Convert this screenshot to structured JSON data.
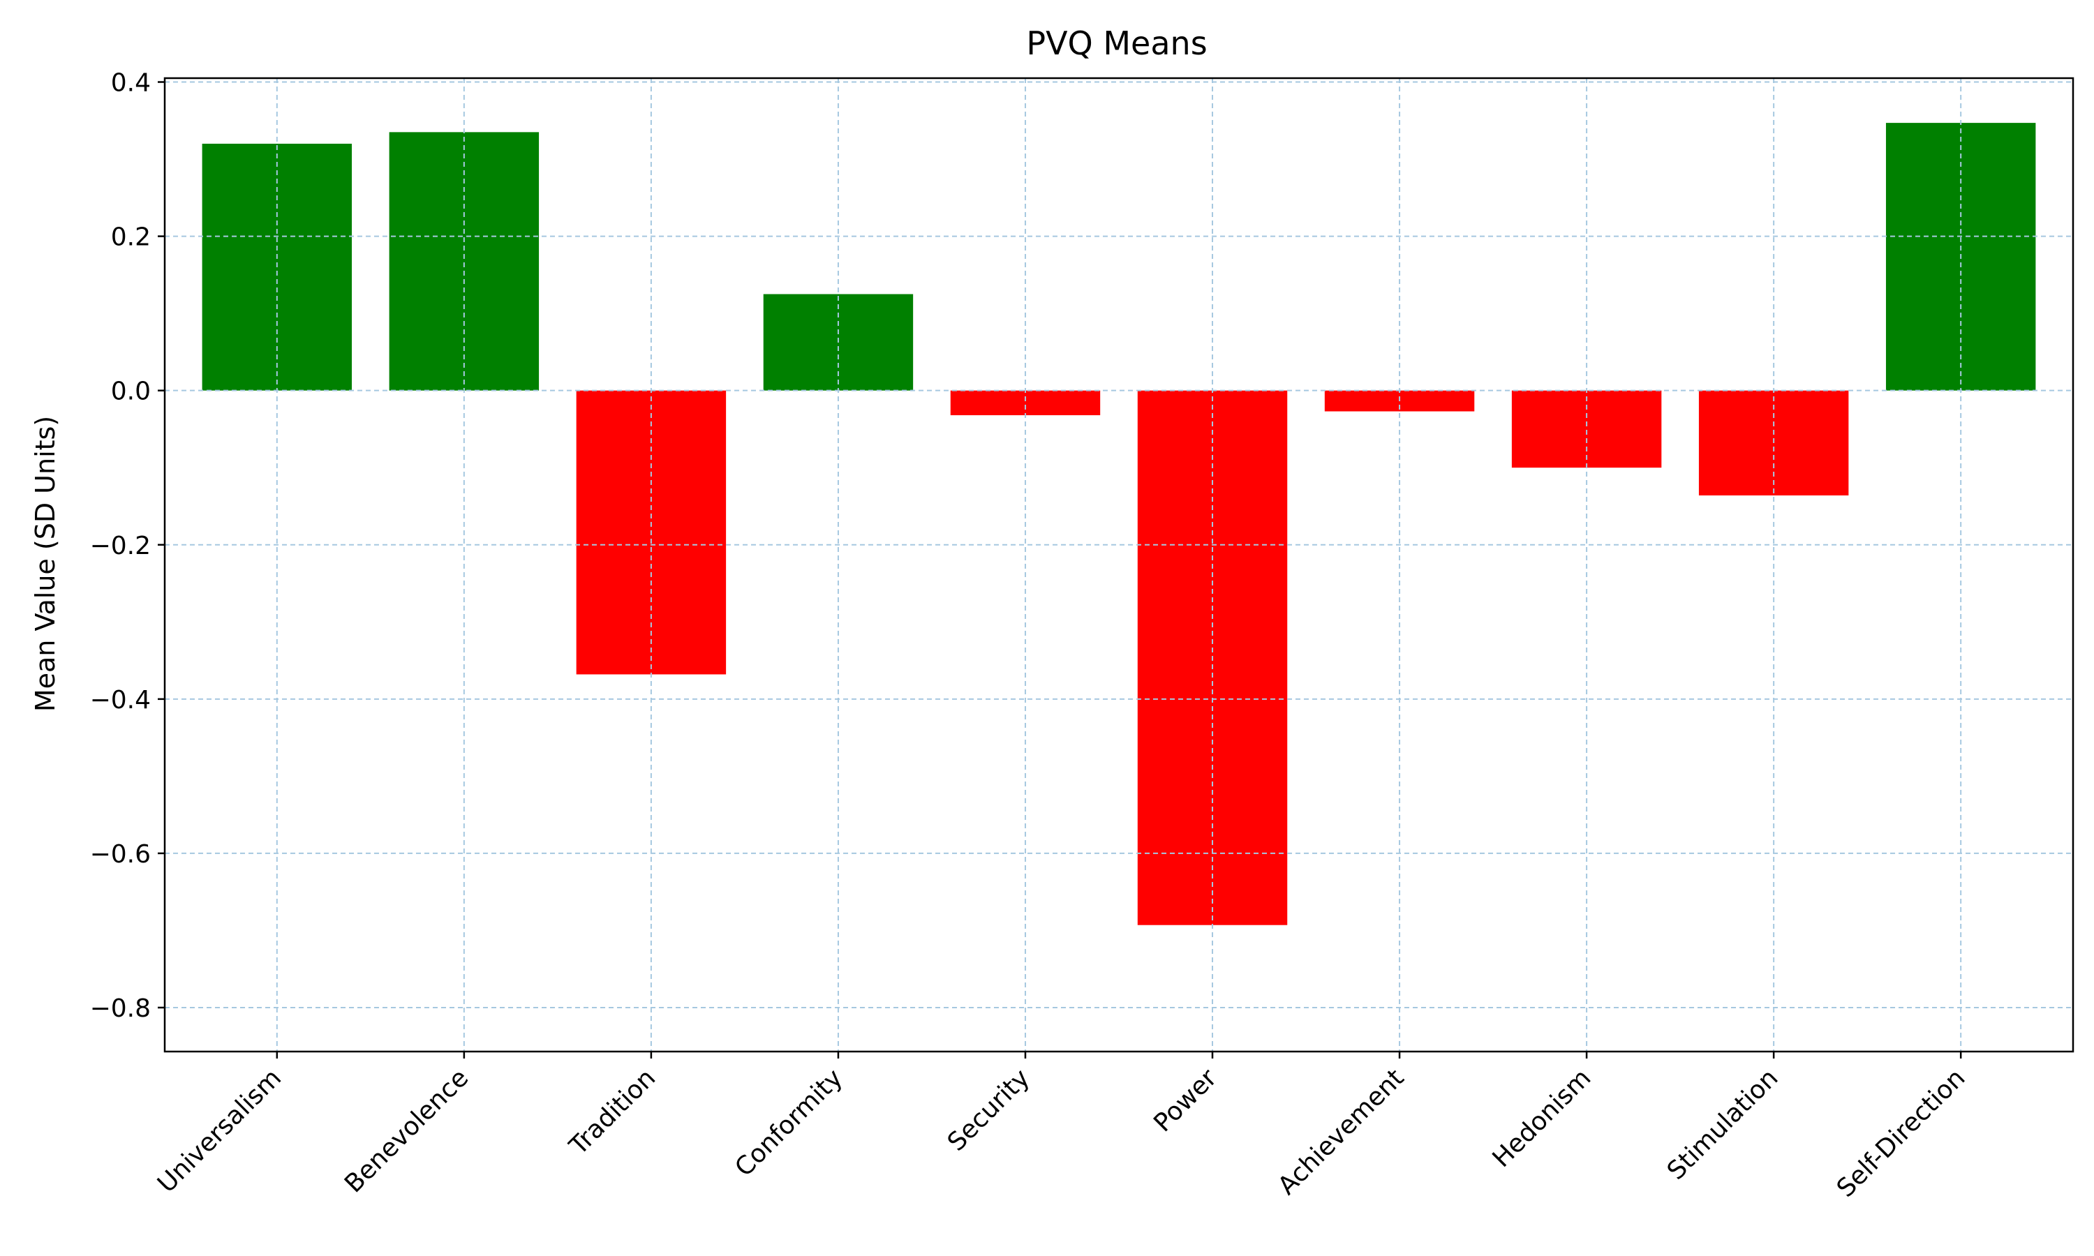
{
  "chart_data": {
    "type": "bar",
    "title": "PVQ Means",
    "xlabel": "",
    "ylabel": "Mean Value (SD Units)",
    "categories": [
      "Universalism",
      "Benevolence",
      "Tradition",
      "Conformity",
      "Security",
      "Power",
      "Achievement",
      "Hedonism",
      "Stimulation",
      "Self-Direction"
    ],
    "values": [
      0.32,
      0.335,
      -0.368,
      0.125,
      -0.032,
      -0.693,
      -0.027,
      -0.1,
      -0.136,
      0.347
    ],
    "ylim": [
      -0.857,
      0.405
    ],
    "yticks": [
      0.4,
      0.2,
      0.0,
      -0.2,
      -0.4,
      -0.6,
      -0.8
    ],
    "ytick_labels": [
      "0.4",
      "0.2",
      "0.0",
      "−0.2",
      "−0.4",
      "−0.6",
      "−0.8"
    ],
    "grid": true,
    "colors": {
      "positive": "#008000",
      "negative": "#ff0000",
      "grid": "#a6c8e0",
      "axis": "#000000"
    }
  }
}
